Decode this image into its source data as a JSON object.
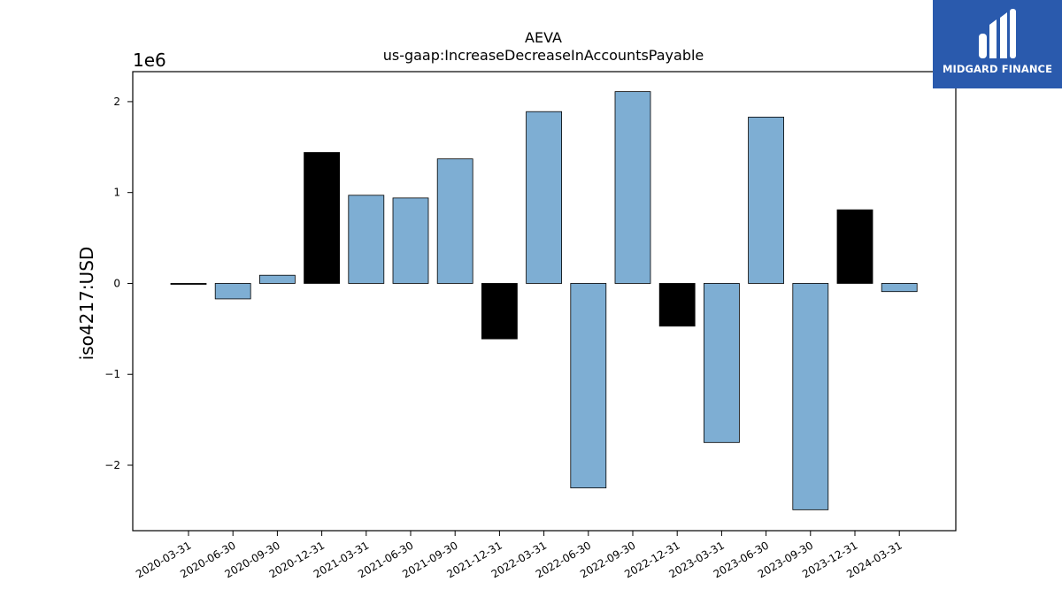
{
  "chart_data": {
    "type": "bar",
    "title": "AEVA",
    "subtitle": "us-gaap:IncreaseDecreaseInAccountsPayable",
    "ylabel": "iso4217:USD",
    "xlabel": "",
    "y_scale_label": "1e6",
    "y_ticks": [
      -2,
      -1,
      0,
      1,
      2
    ],
    "y_tick_labels": [
      "−2",
      "−1",
      "0",
      "1",
      "2"
    ],
    "ylim": [
      -2.72,
      2.33
    ],
    "grid": false,
    "categories": [
      "2020-03-31",
      "2020-06-30",
      "2020-09-30",
      "2020-12-31",
      "2021-03-31",
      "2021-06-30",
      "2021-09-30",
      "2021-12-31",
      "2022-03-31",
      "2022-06-30",
      "2022-09-30",
      "2022-12-31",
      "2023-03-31",
      "2023-06-30",
      "2023-09-30",
      "2023-12-31",
      "2024-03-31"
    ],
    "values": [
      -0.01,
      -0.17,
      0.09,
      1.44,
      0.97,
      0.94,
      1.37,
      -0.61,
      1.89,
      -2.25,
      2.11,
      -0.47,
      -1.75,
      1.83,
      -2.49,
      0.81,
      -0.09
    ],
    "bar_colors": [
      "#000000",
      "#7eaed3",
      "#7eaed3",
      "#000000",
      "#7eaed3",
      "#7eaed3",
      "#7eaed3",
      "#000000",
      "#7eaed3",
      "#7eaed3",
      "#7eaed3",
      "#000000",
      "#7eaed3",
      "#7eaed3",
      "#7eaed3",
      "#000000",
      "#7eaed3"
    ]
  },
  "logo": {
    "text": "MIDGARD FINANCE",
    "background": "#2a5aad"
  }
}
